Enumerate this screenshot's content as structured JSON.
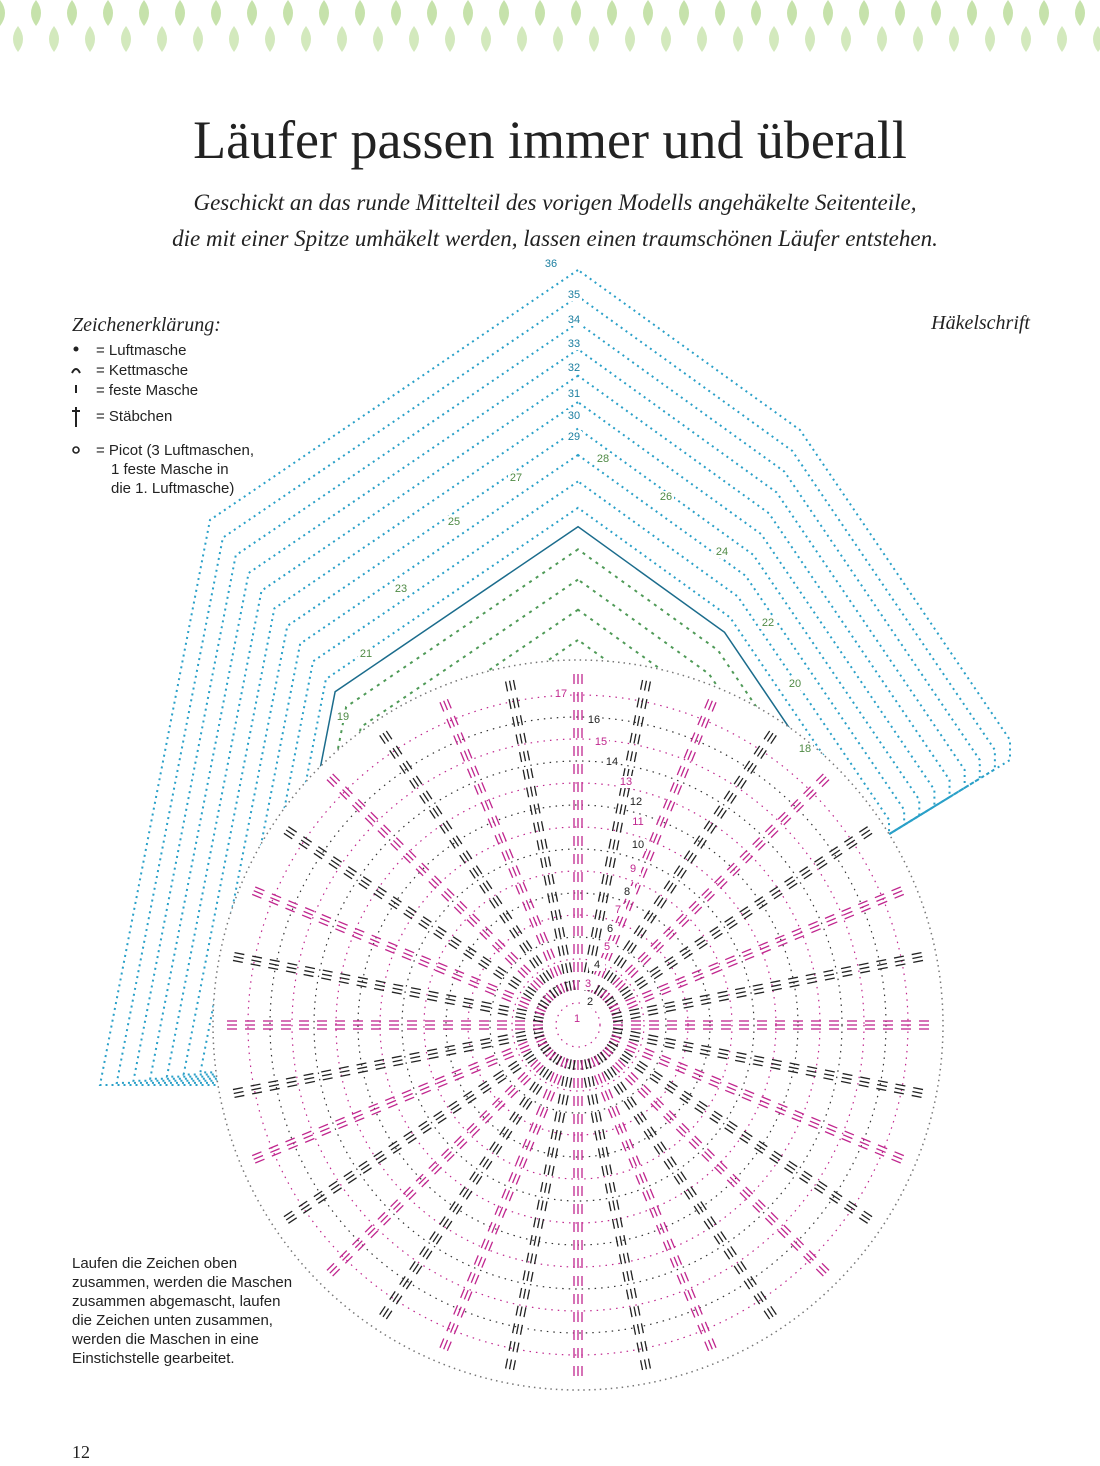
{
  "header": {
    "title": "Läufer passen immer und überall",
    "subtitle": [
      "Geschickt an das runde Mittelteil des vorigen Modells angehäkelte Seitenteile,",
      "die mit einer Spitze umhäkelt werden, lassen einen traumschönen Läufer entstehen."
    ]
  },
  "legend": {
    "title": "Zeichenerklärung:",
    "items": [
      "= Luftmasche",
      "= Kettmasche",
      "= feste Masche",
      "= Stäbchen"
    ],
    "picot": [
      "= Picot (3 Luftmaschen,",
      "1 feste Masche in",
      "die 1. Luftmasche)"
    ]
  },
  "diagram": {
    "label": "Häkelschrift",
    "row_numbers": [
      1,
      2,
      3,
      4,
      5,
      6,
      7,
      8,
      9,
      10,
      11,
      12,
      13,
      14,
      15,
      16,
      17,
      18,
      19,
      20,
      21,
      22,
      23,
      24,
      25,
      26,
      27,
      28,
      29,
      30,
      31,
      32,
      33,
      34,
      35,
      36
    ]
  },
  "note": [
    "Laufen die Zeichen oben",
    "zusammen, werden die Maschen",
    "zusammen abgemascht, laufen",
    "die Zeichen unten zusammen,",
    "werden die Maschen in eine",
    "Einstichstelle gearbeitet."
  ],
  "page_number": "12"
}
